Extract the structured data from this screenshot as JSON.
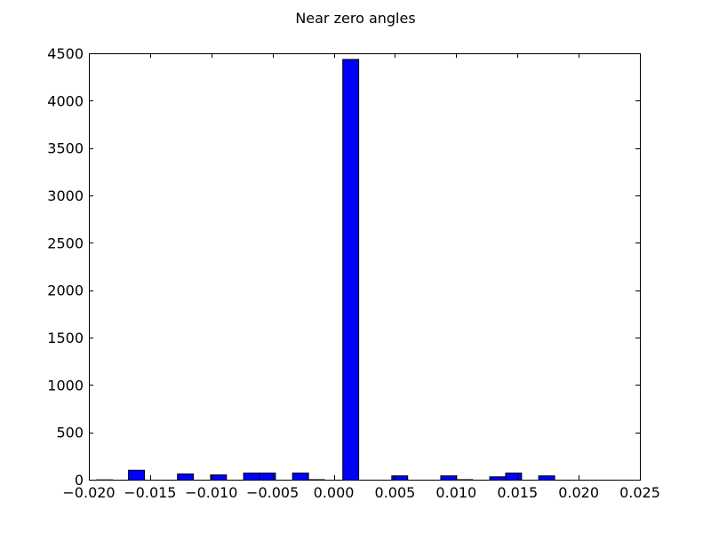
{
  "chart_data": {
    "type": "bar",
    "title": "Near zero angles",
    "xlabel": "",
    "ylabel": "",
    "xlim": [
      -0.02,
      0.025
    ],
    "ylim": [
      0,
      4500
    ],
    "xticks": [
      "−0.020",
      "−0.015",
      "−0.010",
      "−0.005",
      "0.000",
      "0.005",
      "0.010",
      "0.015",
      "0.020",
      "0.025"
    ],
    "yticks": [
      "0",
      "500",
      "1000",
      "1500",
      "2000",
      "2500",
      "3000",
      "3500",
      "4000",
      "4500"
    ],
    "bin_width": 0.0013,
    "bar_color": "#0000ff",
    "edge_color": "#000000",
    "grid": false,
    "bins": [
      {
        "x": -0.0194,
        "value": 3
      },
      {
        "x": -0.0168,
        "value": 105
      },
      {
        "x": -0.0128,
        "value": 65
      },
      {
        "x": -0.0101,
        "value": 55
      },
      {
        "x": -0.0074,
        "value": 75
      },
      {
        "x": -0.0061,
        "value": 75
      },
      {
        "x": -0.0034,
        "value": 75
      },
      {
        "x": -0.0021,
        "value": 5
      },
      {
        "x": 0.0007,
        "value": 4440
      },
      {
        "x": 0.0047,
        "value": 45
      },
      {
        "x": 0.0087,
        "value": 45
      },
      {
        "x": 0.01,
        "value": 5
      },
      {
        "x": 0.0127,
        "value": 35
      },
      {
        "x": 0.014,
        "value": 75
      },
      {
        "x": 0.0167,
        "value": 45
      }
    ]
  }
}
